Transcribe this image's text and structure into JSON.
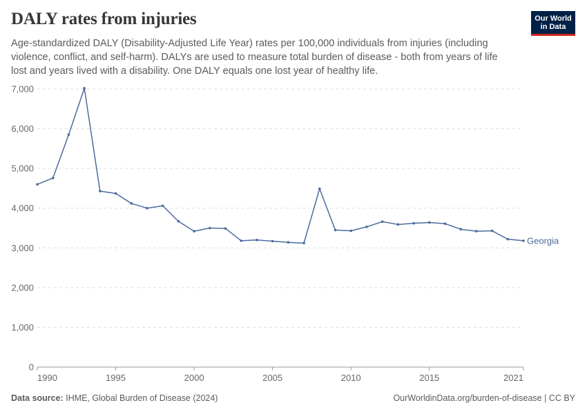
{
  "header": {
    "title": "DALY rates from injuries",
    "subtitle": "Age-standardized DALY (Disability-Adjusted Life Year) rates per 100,000 individuals from injuries (including violence, conflict, and self-harm). DALYs are used to measure total burden of disease - both from years of life lost and years lived with a disability. One DALY equals one lost year of healthy life."
  },
  "logo": {
    "line1": "Our World",
    "line2": "in Data"
  },
  "footer": {
    "source_label": "Data source:",
    "source_text": "IHME, Global Burden of Disease (2024)",
    "url_text": "OurWorldinData.org/burden-of-disease | CC BY"
  },
  "colors": {
    "series": "#4c6a9c",
    "grid": "#dddddd",
    "axis": "#666666",
    "logo_bg": "#002147",
    "logo_accent": "#ce261e"
  },
  "chart_data": {
    "type": "line",
    "title": "DALY rates from injuries",
    "xlabel": "",
    "ylabel": "",
    "xlim": [
      1990,
      2021
    ],
    "ylim": [
      0,
      7000
    ],
    "grid": "horizontal dashed",
    "y_ticks": [
      0,
      1000,
      2000,
      3000,
      4000,
      5000,
      6000,
      7000
    ],
    "y_tick_labels": [
      "0",
      "1,000",
      "2,000",
      "3,000",
      "4,000",
      "5,000",
      "6,000",
      "7,000"
    ],
    "x_ticks": [
      1990,
      1995,
      2000,
      2005,
      2010,
      2015,
      2021
    ],
    "x_tick_labels": [
      "1990",
      "1995",
      "2000",
      "2005",
      "2010",
      "2015",
      "2021"
    ],
    "series": [
      {
        "name": "Georgia",
        "color": "#4c6a9c",
        "x": [
          1990,
          1991,
          1992,
          1993,
          1994,
          1995,
          1996,
          1997,
          1998,
          1999,
          2000,
          2001,
          2002,
          2003,
          2004,
          2005,
          2006,
          2007,
          2008,
          2009,
          2010,
          2011,
          2012,
          2013,
          2014,
          2015,
          2016,
          2017,
          2018,
          2019,
          2020,
          2021
        ],
        "values": [
          4600,
          4760,
          5850,
          7020,
          4430,
          4370,
          4120,
          4000,
          4060,
          3670,
          3420,
          3500,
          3490,
          3180,
          3200,
          3170,
          3140,
          3120,
          4490,
          3450,
          3430,
          3530,
          3660,
          3590,
          3620,
          3640,
          3610,
          3470,
          3420,
          3430,
          3220,
          3180
        ]
      }
    ]
  }
}
